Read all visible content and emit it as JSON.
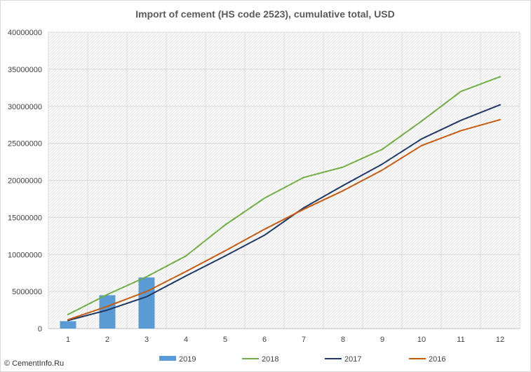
{
  "watermark": "© CementInfo.Ru",
  "chart_data": {
    "type": "bar",
    "title": "Import of cement (HS code 2523), cumulative total, USD",
    "xlabel": "",
    "ylabel": "",
    "categories": [
      "1",
      "2",
      "3",
      "4",
      "5",
      "6",
      "7",
      "8",
      "9",
      "10",
      "11",
      "12"
    ],
    "ylim": [
      0,
      40000000
    ],
    "yticks": [
      0,
      5000000,
      10000000,
      15000000,
      20000000,
      25000000,
      30000000,
      35000000,
      40000000
    ],
    "grid": true,
    "legend_position": "bottom",
    "series": [
      {
        "name": "2019",
        "type": "bar",
        "color": "#5b9bd5",
        "values": [
          1000000,
          4500000,
          6900000,
          null,
          null,
          null,
          null,
          null,
          null,
          null,
          null,
          null
        ]
      },
      {
        "name": "2018",
        "type": "line",
        "color": "#70ad47",
        "values": [
          1900000,
          4600000,
          7000000,
          9800000,
          14000000,
          17600000,
          20400000,
          21800000,
          24200000,
          28000000,
          32000000,
          34000000
        ]
      },
      {
        "name": "2017",
        "type": "line",
        "color": "#1f3864",
        "values": [
          1100000,
          2500000,
          4300000,
          7100000,
          9800000,
          12600000,
          16300000,
          19300000,
          22200000,
          25600000,
          28100000,
          30200000
        ]
      },
      {
        "name": "2016",
        "type": "line",
        "color": "#c55a11",
        "values": [
          1200000,
          3000000,
          5000000,
          7700000,
          10500000,
          13400000,
          16100000,
          18600000,
          21400000,
          24700000,
          26700000,
          28200000
        ]
      }
    ]
  }
}
